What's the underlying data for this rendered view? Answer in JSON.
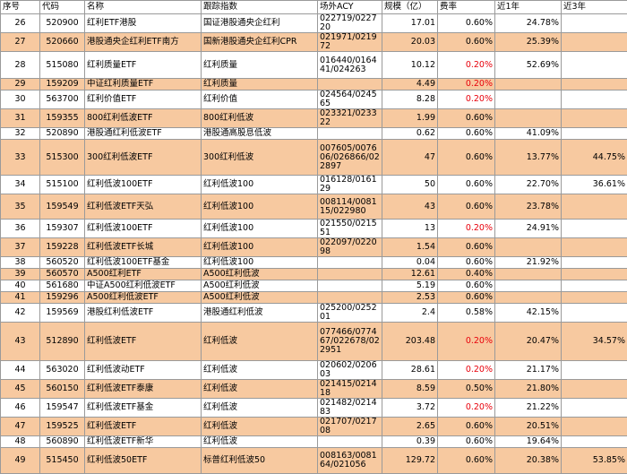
{
  "table": {
    "headers": [
      "序号",
      "代码",
      "名称",
      "跟踪指数",
      "场外ACY",
      "规模（亿）",
      "费率",
      "近1年",
      "近3年"
    ],
    "highlight_color": "#f7c9a0",
    "red_color": "#e8000b",
    "rows": [
      {
        "no": "26",
        "code": "520900",
        "name": "红利ETF港股",
        "index": "国证港股通央企红利",
        "acy": "022719/022720",
        "size": "17.01",
        "fee": "0.60%",
        "fee_red": false,
        "y1": "24.78%",
        "y3": "",
        "hl": false,
        "h": 13
      },
      {
        "no": "27",
        "code": "520660",
        "name": "港股通央企红利ETF南方",
        "index": "国新港股通央企红利CPR",
        "acy": "021971/021972",
        "size": "20.03",
        "fee": "0.60%",
        "fee_red": false,
        "y1": "25.39%",
        "y3": "",
        "hl": true,
        "h": 13
      },
      {
        "no": "28",
        "code": "515080",
        "name": "红利质量ETF",
        "index": "红利质量",
        "acy": "016440/016441/024263",
        "size": "10.12",
        "fee": "0.20%",
        "fee_red": true,
        "y1": "52.69%",
        "y3": "",
        "hl": false,
        "h": 30
      },
      {
        "no": "29",
        "code": "159209",
        "name": "中证红利质量ETF",
        "index": "红利质量",
        "acy": "",
        "size": "4.49",
        "fee": "0.20%",
        "fee_red": true,
        "y1": "",
        "y3": "",
        "hl": true,
        "h": 13
      },
      {
        "no": "30",
        "code": "563700",
        "name": "红利价值ETF",
        "index": "红利价值",
        "acy": "024564/024565",
        "size": "8.28",
        "fee": "0.20%",
        "fee_red": true,
        "y1": "",
        "y3": "",
        "hl": false,
        "h": 13
      },
      {
        "no": "31",
        "code": "159355",
        "name": "800红利低波ETF",
        "index": "800红利低波",
        "acy": "023321/023322",
        "size": "1.99",
        "fee": "0.60%",
        "fee_red": false,
        "y1": "",
        "y3": "",
        "hl": true,
        "h": 13
      },
      {
        "no": "32",
        "code": "520890",
        "name": "港股通红利低波ETF",
        "index": "港股通高股息低波",
        "acy": "",
        "size": "0.62",
        "fee": "0.60%",
        "fee_red": false,
        "y1": "41.09%",
        "y3": "",
        "hl": false,
        "h": 13
      },
      {
        "no": "33",
        "code": "515300",
        "name": "300红利低波ETF",
        "index": "300红利低波",
        "acy": "007605/007606/026866/022897",
        "size": "47",
        "fee": "0.60%",
        "fee_red": false,
        "y1": "13.77%",
        "y3": "44.75%",
        "hl": true,
        "h": 40
      },
      {
        "no": "34",
        "code": "515100",
        "name": "红利低波100ETF",
        "index": "红利低波100",
        "acy": "016128/016129",
        "size": "50",
        "fee": "0.60%",
        "fee_red": false,
        "y1": "22.70%",
        "y3": "36.61%",
        "hl": false,
        "h": 13
      },
      {
        "no": "35",
        "code": "159549",
        "name": "红利低波ETF天弘",
        "index": "红利低波100",
        "acy": "008114/008115/022980",
        "size": "43",
        "fee": "0.60%",
        "fee_red": false,
        "y1": "23.78%",
        "y3": "",
        "hl": true,
        "h": 28
      },
      {
        "no": "36",
        "code": "159307",
        "name": "红利低波100ETF",
        "index": "红利低波100",
        "acy": "021550/021551",
        "size": "13",
        "fee": "0.20%",
        "fee_red": true,
        "y1": "24.91%",
        "y3": "",
        "hl": false,
        "h": 13
      },
      {
        "no": "37",
        "code": "159228",
        "name": "红利低波ETF长城",
        "index": "红利低波100",
        "acy": "022097/022098",
        "size": "1.54",
        "fee": "0.60%",
        "fee_red": false,
        "y1": "",
        "y3": "",
        "hl": true,
        "h": 13
      },
      {
        "no": "38",
        "code": "560520",
        "name": "红利低波100ETF基金",
        "index": "红利低波100",
        "acy": "",
        "size": "0.04",
        "fee": "0.60%",
        "fee_red": false,
        "y1": "21.92%",
        "y3": "",
        "hl": false,
        "h": 13
      },
      {
        "no": "39",
        "code": "560570",
        "name": "A500红利ETF",
        "index": "A500红利低波",
        "acy": "",
        "size": "12.61",
        "fee": "0.40%",
        "fee_red": false,
        "y1": "",
        "y3": "",
        "hl": true,
        "h": 13
      },
      {
        "no": "40",
        "code": "561680",
        "name": "中证A500红利低波ETF",
        "index": "A500红利低波",
        "acy": "",
        "size": "5.19",
        "fee": "0.60%",
        "fee_red": false,
        "y1": "",
        "y3": "",
        "hl": false,
        "h": 13
      },
      {
        "no": "41",
        "code": "159296",
        "name": "A500红利低波ETF",
        "index": "A500红利低波",
        "acy": "",
        "size": "2.53",
        "fee": "0.60%",
        "fee_red": false,
        "y1": "",
        "y3": "",
        "hl": true,
        "h": 13
      },
      {
        "no": "42",
        "code": "159569",
        "name": "港股红利低波ETF",
        "index": "港股通红利低波",
        "acy": "025200/025201",
        "size": "2.4",
        "fee": "0.58%",
        "fee_red": false,
        "y1": "42.15%",
        "y3": "",
        "hl": false,
        "h": 13
      },
      {
        "no": "43",
        "code": "512890",
        "name": "红利低波ETF",
        "index": "红利低波",
        "acy": "077466/077467/022678/022951",
        "size": "203.48",
        "fee": "0.20%",
        "fee_red": true,
        "y1": "20.47%",
        "y3": "34.57%",
        "hl": true,
        "h": 43
      },
      {
        "no": "44",
        "code": "563020",
        "name": "红利低波动ETF",
        "index": "红利低波",
        "acy": "020602/020603",
        "size": "28.61",
        "fee": "0.20%",
        "fee_red": true,
        "y1": "21.17%",
        "y3": "",
        "hl": false,
        "h": 13
      },
      {
        "no": "45",
        "code": "560150",
        "name": "红利低波ETF泰康",
        "index": "红利低波",
        "acy": "021415/021418",
        "size": "8.59",
        "fee": "0.50%",
        "fee_red": false,
        "y1": "21.80%",
        "y3": "",
        "hl": true,
        "h": 13
      },
      {
        "no": "46",
        "code": "159547",
        "name": "红利低波ETF基金",
        "index": "红利低波",
        "acy": "021482/021483",
        "size": "3.72",
        "fee": "0.20%",
        "fee_red": true,
        "y1": "21.22%",
        "y3": "",
        "hl": false,
        "h": 13
      },
      {
        "no": "47",
        "code": "159525",
        "name": "红利低波ETF",
        "index": "红利低波",
        "acy": "021707/021708",
        "size": "2.65",
        "fee": "0.60%",
        "fee_red": false,
        "y1": "20.51%",
        "y3": "",
        "hl": true,
        "h": 13
      },
      {
        "no": "48",
        "code": "560890",
        "name": "红利低波ETF新华",
        "index": "红利低波",
        "acy": "",
        "size": "0.39",
        "fee": "0.60%",
        "fee_red": false,
        "y1": "19.64%",
        "y3": "",
        "hl": false,
        "h": 13
      },
      {
        "no": "49",
        "code": "515450",
        "name": "红利低波50ETF",
        "index": "标普红利低波50",
        "acy": "008163/008164/021056",
        "size": "129.72",
        "fee": "0.60%",
        "fee_red": false,
        "y1": "20.38%",
        "y3": "53.85%",
        "hl": true,
        "h": 29
      }
    ]
  }
}
